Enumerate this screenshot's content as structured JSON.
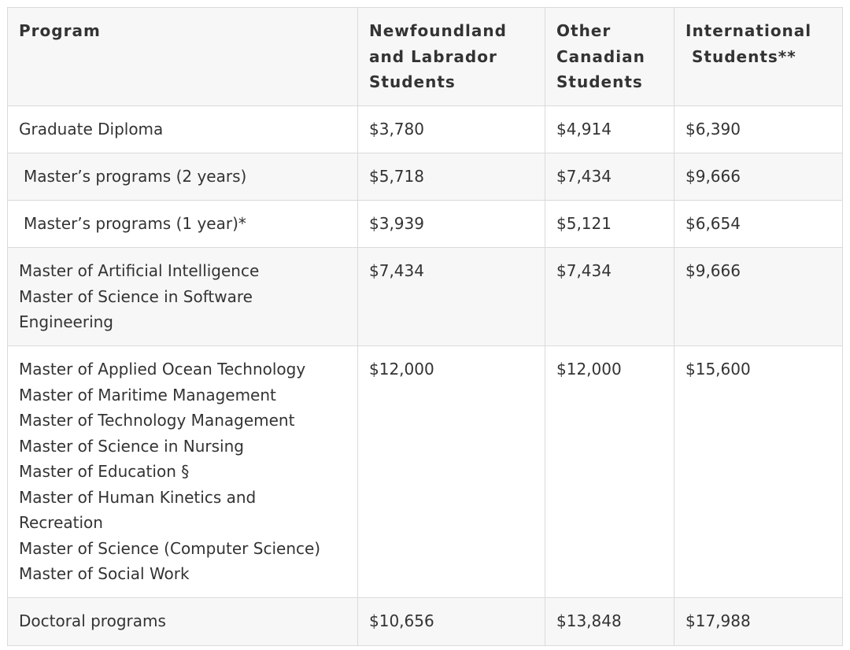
{
  "table": {
    "headers": {
      "program": "Program",
      "nl": [
        "Newfoundland",
        "and Labrador",
        "Students"
      ],
      "canadian": [
        "Other",
        "Canadian",
        "Students"
      ],
      "international": [
        "International",
        "Students**"
      ]
    },
    "rows": [
      {
        "program": [
          "Graduate Diploma"
        ],
        "nl": "$3,780",
        "canadian": "$4,914",
        "international": "$6,390"
      },
      {
        "program": [
          "Master’s programs (2 years)"
        ],
        "nl": "$5,718",
        "canadian": "$7,434",
        "international": "$9,666"
      },
      {
        "program": [
          "Master’s programs (1 year)*"
        ],
        "nl": "$3,939",
        "canadian": "$5,121",
        "international": "$6,654"
      },
      {
        "program": [
          "Master of Artificial Intelligence",
          "Master of Science in Software",
          "Engineering"
        ],
        "nl": "$7,434",
        "canadian": "$7,434",
        "international": "$9,666"
      },
      {
        "program": [
          "Master of Applied Ocean Technology",
          "Master of Maritime Management",
          "Master of Technology Management",
          "Master of Science in Nursing",
          "Master of Education §",
          "Master of Human Kinetics and",
          "Recreation",
          "Master of Science (Computer Science)",
          "Master of Social Work"
        ],
        "nl": "$12,000",
        "canadian": "$12,000",
        "international": "$15,600"
      },
      {
        "program": [
          "Doctoral programs"
        ],
        "nl": "$10,656",
        "canadian": "$13,848",
        "international": "$17,988"
      }
    ]
  }
}
